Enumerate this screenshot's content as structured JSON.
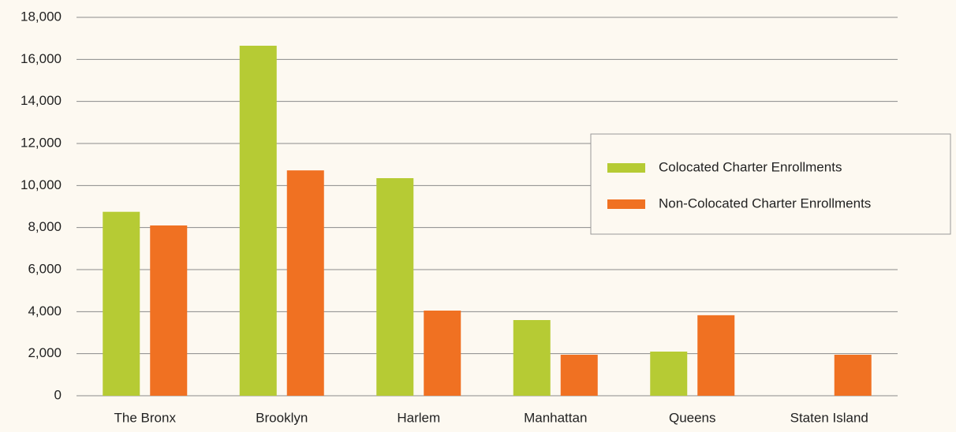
{
  "chart_data": {
    "type": "bar",
    "categories": [
      "The Bronx",
      "Brooklyn",
      "Harlem",
      "Manhattan",
      "Queens",
      "Staten Island"
    ],
    "series": [
      {
        "name": "Colocated Charter Enrollments",
        "color": "#b6cb34",
        "values": [
          8750,
          16650,
          10350,
          3600,
          2100,
          0
        ]
      },
      {
        "name": "Non-Colocated Charter Enrollments",
        "color": "#f07122",
        "values": [
          8100,
          10720,
          4050,
          1950,
          3830,
          1950
        ]
      }
    ],
    "ylim": [
      0,
      18000
    ],
    "yticks": [
      0,
      {
        "value": 2000,
        "label": "2,000"
      },
      {
        "value": 4000,
        "label": "4,000"
      },
      {
        "value": 6000,
        "label": "6,000"
      },
      {
        "value": 8000,
        "label": "8,000"
      },
      {
        "value": 10000,
        "label": "10,000"
      },
      {
        "value": 12000,
        "label": "12,000"
      },
      {
        "value": 14000,
        "label": "14,000"
      },
      {
        "value": 16000,
        "label": "16,000"
      },
      {
        "value": 18000,
        "label": "18,000"
      }
    ],
    "grid": true,
    "legend": "right"
  }
}
